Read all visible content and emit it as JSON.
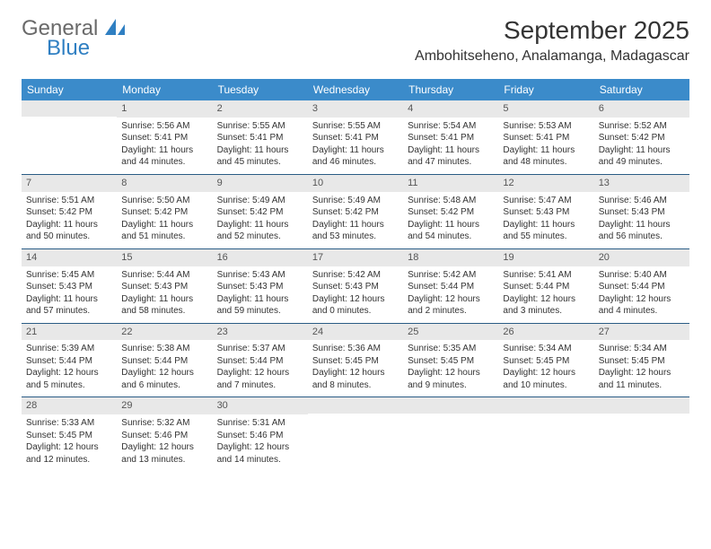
{
  "logo": {
    "text1": "General",
    "text2": "Blue",
    "color_general": "#6a6a6a",
    "color_blue": "#2f7fc2"
  },
  "header": {
    "title": "September 2025",
    "location": "Ambohitseheno, Analamanga, Madagascar"
  },
  "colors": {
    "weekday_bg": "#3b8bca",
    "daynum_bg": "#e8e8e8",
    "week_border": "#2a5c85"
  },
  "weekdays": [
    "Sunday",
    "Monday",
    "Tuesday",
    "Wednesday",
    "Thursday",
    "Friday",
    "Saturday"
  ],
  "weeks": [
    [
      {
        "num": "",
        "sunrise": "",
        "sunset": "",
        "daylight": ""
      },
      {
        "num": "1",
        "sunrise": "Sunrise: 5:56 AM",
        "sunset": "Sunset: 5:41 PM",
        "daylight": "Daylight: 11 hours and 44 minutes."
      },
      {
        "num": "2",
        "sunrise": "Sunrise: 5:55 AM",
        "sunset": "Sunset: 5:41 PM",
        "daylight": "Daylight: 11 hours and 45 minutes."
      },
      {
        "num": "3",
        "sunrise": "Sunrise: 5:55 AM",
        "sunset": "Sunset: 5:41 PM",
        "daylight": "Daylight: 11 hours and 46 minutes."
      },
      {
        "num": "4",
        "sunrise": "Sunrise: 5:54 AM",
        "sunset": "Sunset: 5:41 PM",
        "daylight": "Daylight: 11 hours and 47 minutes."
      },
      {
        "num": "5",
        "sunrise": "Sunrise: 5:53 AM",
        "sunset": "Sunset: 5:41 PM",
        "daylight": "Daylight: 11 hours and 48 minutes."
      },
      {
        "num": "6",
        "sunrise": "Sunrise: 5:52 AM",
        "sunset": "Sunset: 5:42 PM",
        "daylight": "Daylight: 11 hours and 49 minutes."
      }
    ],
    [
      {
        "num": "7",
        "sunrise": "Sunrise: 5:51 AM",
        "sunset": "Sunset: 5:42 PM",
        "daylight": "Daylight: 11 hours and 50 minutes."
      },
      {
        "num": "8",
        "sunrise": "Sunrise: 5:50 AM",
        "sunset": "Sunset: 5:42 PM",
        "daylight": "Daylight: 11 hours and 51 minutes."
      },
      {
        "num": "9",
        "sunrise": "Sunrise: 5:49 AM",
        "sunset": "Sunset: 5:42 PM",
        "daylight": "Daylight: 11 hours and 52 minutes."
      },
      {
        "num": "10",
        "sunrise": "Sunrise: 5:49 AM",
        "sunset": "Sunset: 5:42 PM",
        "daylight": "Daylight: 11 hours and 53 minutes."
      },
      {
        "num": "11",
        "sunrise": "Sunrise: 5:48 AM",
        "sunset": "Sunset: 5:42 PM",
        "daylight": "Daylight: 11 hours and 54 minutes."
      },
      {
        "num": "12",
        "sunrise": "Sunrise: 5:47 AM",
        "sunset": "Sunset: 5:43 PM",
        "daylight": "Daylight: 11 hours and 55 minutes."
      },
      {
        "num": "13",
        "sunrise": "Sunrise: 5:46 AM",
        "sunset": "Sunset: 5:43 PM",
        "daylight": "Daylight: 11 hours and 56 minutes."
      }
    ],
    [
      {
        "num": "14",
        "sunrise": "Sunrise: 5:45 AM",
        "sunset": "Sunset: 5:43 PM",
        "daylight": "Daylight: 11 hours and 57 minutes."
      },
      {
        "num": "15",
        "sunrise": "Sunrise: 5:44 AM",
        "sunset": "Sunset: 5:43 PM",
        "daylight": "Daylight: 11 hours and 58 minutes."
      },
      {
        "num": "16",
        "sunrise": "Sunrise: 5:43 AM",
        "sunset": "Sunset: 5:43 PM",
        "daylight": "Daylight: 11 hours and 59 minutes."
      },
      {
        "num": "17",
        "sunrise": "Sunrise: 5:42 AM",
        "sunset": "Sunset: 5:43 PM",
        "daylight": "Daylight: 12 hours and 0 minutes."
      },
      {
        "num": "18",
        "sunrise": "Sunrise: 5:42 AM",
        "sunset": "Sunset: 5:44 PM",
        "daylight": "Daylight: 12 hours and 2 minutes."
      },
      {
        "num": "19",
        "sunrise": "Sunrise: 5:41 AM",
        "sunset": "Sunset: 5:44 PM",
        "daylight": "Daylight: 12 hours and 3 minutes."
      },
      {
        "num": "20",
        "sunrise": "Sunrise: 5:40 AM",
        "sunset": "Sunset: 5:44 PM",
        "daylight": "Daylight: 12 hours and 4 minutes."
      }
    ],
    [
      {
        "num": "21",
        "sunrise": "Sunrise: 5:39 AM",
        "sunset": "Sunset: 5:44 PM",
        "daylight": "Daylight: 12 hours and 5 minutes."
      },
      {
        "num": "22",
        "sunrise": "Sunrise: 5:38 AM",
        "sunset": "Sunset: 5:44 PM",
        "daylight": "Daylight: 12 hours and 6 minutes."
      },
      {
        "num": "23",
        "sunrise": "Sunrise: 5:37 AM",
        "sunset": "Sunset: 5:44 PM",
        "daylight": "Daylight: 12 hours and 7 minutes."
      },
      {
        "num": "24",
        "sunrise": "Sunrise: 5:36 AM",
        "sunset": "Sunset: 5:45 PM",
        "daylight": "Daylight: 12 hours and 8 minutes."
      },
      {
        "num": "25",
        "sunrise": "Sunrise: 5:35 AM",
        "sunset": "Sunset: 5:45 PM",
        "daylight": "Daylight: 12 hours and 9 minutes."
      },
      {
        "num": "26",
        "sunrise": "Sunrise: 5:34 AM",
        "sunset": "Sunset: 5:45 PM",
        "daylight": "Daylight: 12 hours and 10 minutes."
      },
      {
        "num": "27",
        "sunrise": "Sunrise: 5:34 AM",
        "sunset": "Sunset: 5:45 PM",
        "daylight": "Daylight: 12 hours and 11 minutes."
      }
    ],
    [
      {
        "num": "28",
        "sunrise": "Sunrise: 5:33 AM",
        "sunset": "Sunset: 5:45 PM",
        "daylight": "Daylight: 12 hours and 12 minutes."
      },
      {
        "num": "29",
        "sunrise": "Sunrise: 5:32 AM",
        "sunset": "Sunset: 5:46 PM",
        "daylight": "Daylight: 12 hours and 13 minutes."
      },
      {
        "num": "30",
        "sunrise": "Sunrise: 5:31 AM",
        "sunset": "Sunset: 5:46 PM",
        "daylight": "Daylight: 12 hours and 14 minutes."
      },
      {
        "num": "",
        "sunrise": "",
        "sunset": "",
        "daylight": ""
      },
      {
        "num": "",
        "sunrise": "",
        "sunset": "",
        "daylight": ""
      },
      {
        "num": "",
        "sunrise": "",
        "sunset": "",
        "daylight": ""
      },
      {
        "num": "",
        "sunrise": "",
        "sunset": "",
        "daylight": ""
      }
    ]
  ]
}
